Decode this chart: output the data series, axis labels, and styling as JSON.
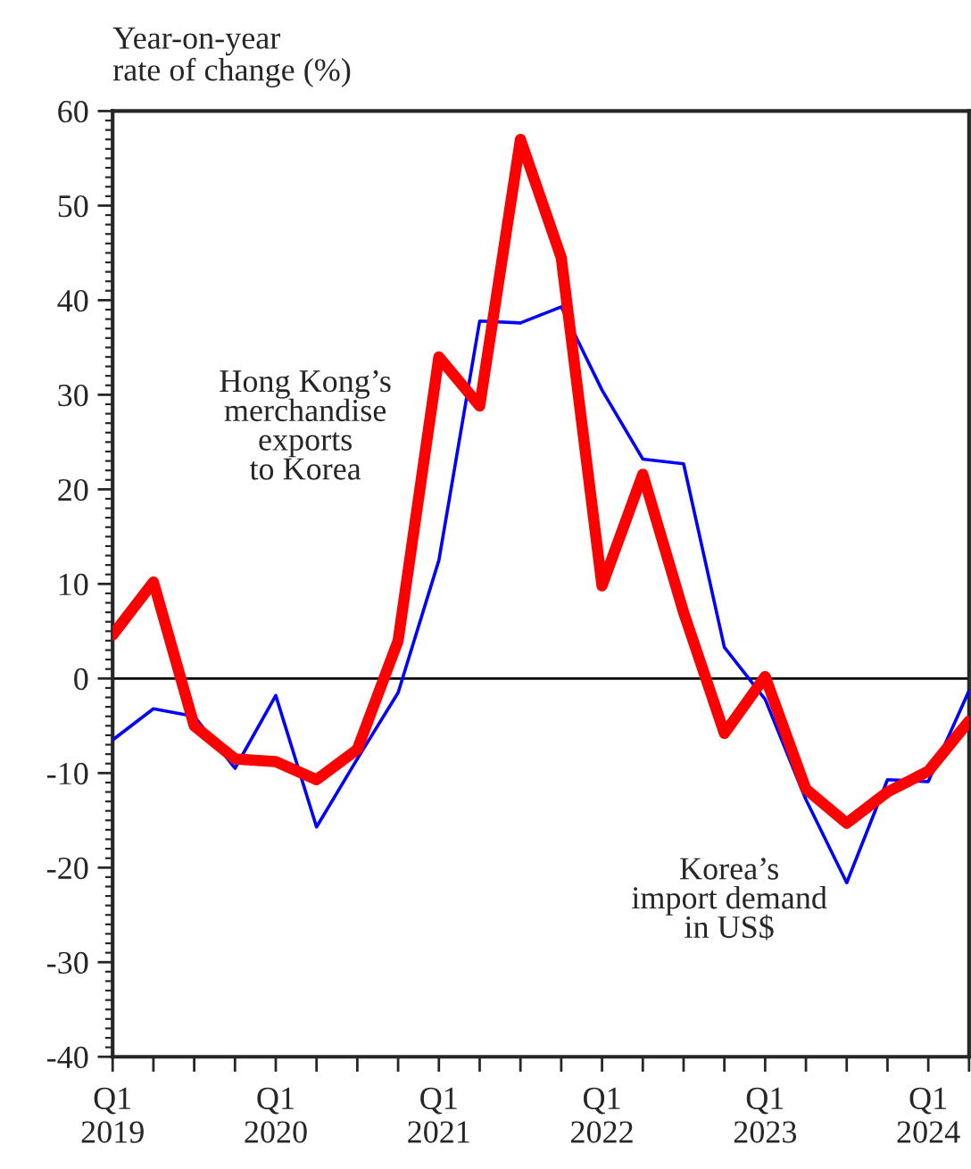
{
  "chart_data": {
    "type": "line",
    "ylabel": "Year-on-year\nrate of change (%)",
    "categories": [
      "Q1\n2019",
      null,
      null,
      null,
      "Q1\n2020",
      null,
      null,
      null,
      "Q1\n2021",
      null,
      null,
      null,
      "Q1\n2022",
      null,
      null,
      null,
      "Q1\n2023",
      null,
      null,
      null,
      "Q1\n2024",
      null
    ],
    "series": [
      {
        "name": "Hong Kong’s\nmerchandise\nexports\nto Korea",
        "color": "#ff0000",
        "values": [
          4.6,
          10.2,
          -5,
          -8.5,
          -8.8,
          -10.7,
          -7.5,
          4,
          34,
          28.8,
          57,
          44.5,
          9.8,
          21.6,
          7,
          -5.8,
          0.2,
          -11.7,
          -15.3,
          -12,
          -9.8,
          -4.5
        ]
      },
      {
        "name": "Korea’s\nimport demand\nin US$",
        "color": "#0000ff",
        "values": [
          -6.5,
          -3.2,
          -4,
          -9.5,
          -1.8,
          -15.7,
          -8.5,
          -1.5,
          12.5,
          37.8,
          37.6,
          39.3,
          30.5,
          23.2,
          22.7,
          3.3,
          -2.2,
          -12.8,
          -21.6,
          -10.7,
          -10.9,
          -1.3
        ]
      }
    ],
    "ylim": [
      -40,
      60
    ],
    "yticks": [
      -40,
      -30,
      -20,
      -10,
      0,
      10,
      20,
      30,
      40,
      50,
      60
    ],
    "ref_lines": [
      {
        "axis": "y",
        "value": 0,
        "color": "#000000"
      }
    ],
    "grid": false,
    "legend": false,
    "marker": "none",
    "line_style": "solid"
  }
}
